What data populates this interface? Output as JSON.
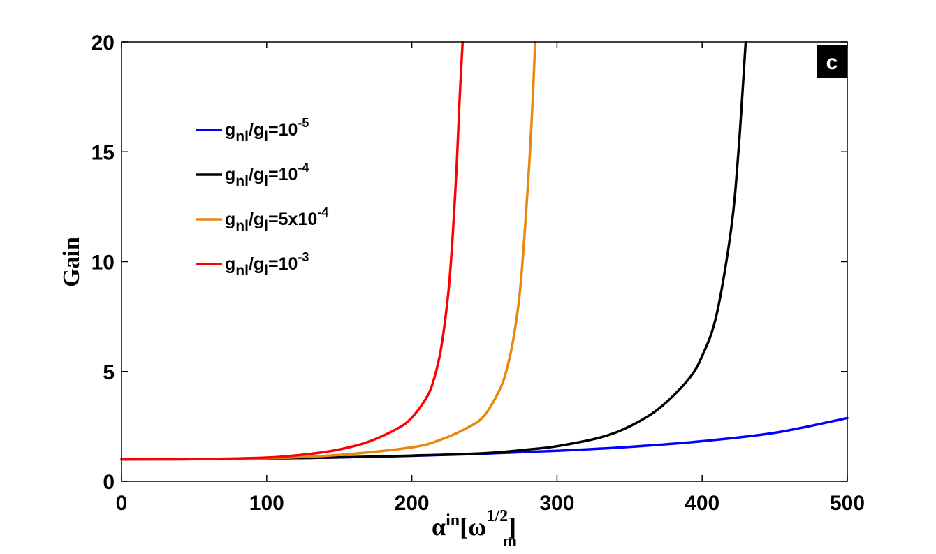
{
  "chart_data": {
    "type": "line",
    "panel_label": "c",
    "xlabel": {
      "base": "α",
      "sup": "in",
      "bracket_open": "[",
      "omega": "ω",
      "omega_sub": "m",
      "omega_sup": "1/2",
      "bracket_close": "]"
    },
    "ylabel": "Gain",
    "xlim": [
      0,
      500
    ],
    "ylim": [
      0,
      20
    ],
    "xticks": [
      0,
      100,
      200,
      300,
      400,
      500
    ],
    "yticks": [
      0,
      5,
      10,
      15,
      20
    ],
    "grid": false,
    "legend_position": "upper-left",
    "series": [
      {
        "name": "g_nl/g_l=10^-5",
        "legend": {
          "g": "g",
          "nl": "nl",
          "slash": "/g",
          "l": "l",
          "eq": "=10",
          "exp": "-5"
        },
        "color": "#0000ff",
        "x": [
          0,
          50,
          100,
          150,
          200,
          250,
          300,
          350,
          400,
          450,
          500
        ],
        "y": [
          1.0,
          1.01,
          1.04,
          1.09,
          1.16,
          1.26,
          1.39,
          1.57,
          1.83,
          2.21,
          2.88
        ]
      },
      {
        "name": "g_nl/g_l=10^-4",
        "legend": {
          "g": "g",
          "nl": "nl",
          "slash": "/g",
          "l": "l",
          "eq": "=10",
          "exp": "-4"
        },
        "color": "#000000",
        "x": [
          0,
          50,
          100,
          150,
          200,
          250,
          280,
          300,
          330,
          350,
          370,
          390,
          400,
          410,
          420,
          425,
          430
        ],
        "y": [
          1.0,
          1.01,
          1.04,
          1.09,
          1.17,
          1.28,
          1.45,
          1.6,
          2.0,
          2.5,
          3.3,
          4.6,
          5.7,
          7.6,
          11.5,
          15.0,
          20.0
        ]
      },
      {
        "name": "g_nl/g_l=5x10^-4",
        "legend": {
          "g": "g",
          "nl": "nl",
          "slash": "/g",
          "l": "l",
          "eq": "=5x10",
          "exp": "-4"
        },
        "color": "#e8860e",
        "x": [
          0,
          50,
          100,
          150,
          200,
          220,
          240,
          250,
          260,
          265,
          270,
          275,
          280,
          283,
          285
        ],
        "y": [
          1.0,
          1.01,
          1.05,
          1.2,
          1.55,
          1.9,
          2.5,
          3.0,
          4.1,
          5.0,
          6.5,
          9.0,
          13.5,
          17.0,
          20.0
        ]
      },
      {
        "name": "g_nl/g_l=10^-3",
        "legend": {
          "g": "g",
          "nl": "nl",
          "slash": "/g",
          "l": "l",
          "eq": "=10",
          "exp": "-3"
        },
        "color": "#ff0000",
        "x": [
          0,
          50,
          100,
          130,
          150,
          170,
          190,
          200,
          210,
          215,
          220,
          225,
          228,
          231,
          233,
          235
        ],
        "y": [
          1.0,
          1.01,
          1.08,
          1.25,
          1.45,
          1.8,
          2.4,
          2.9,
          3.8,
          4.6,
          6.0,
          8.5,
          11.0,
          14.5,
          17.5,
          20.0
        ]
      }
    ]
  }
}
